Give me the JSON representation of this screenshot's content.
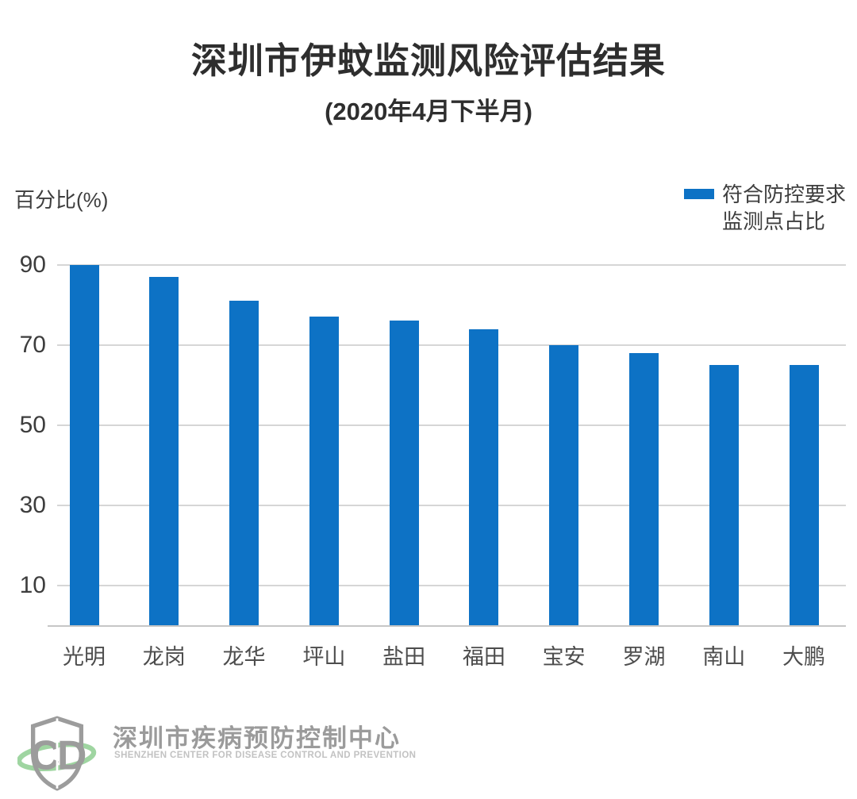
{
  "header": {
    "title": "深圳市伊蚊监测风险评估结果",
    "subtitle": "(2020年4月下半月)"
  },
  "legend": {
    "label": "符合防控要求\n监测点占比",
    "swatch_color": "#0d72c5"
  },
  "chart_data": {
    "type": "bar",
    "title": "深圳市伊蚊监测风险评估结果",
    "subtitle": "(2020年4月下半月)",
    "ylabel": "百分比(%)",
    "xlabel": "",
    "categories": [
      "光明",
      "龙岗",
      "龙华",
      "坪山",
      "盐田",
      "福田",
      "宝安",
      "罗湖",
      "南山",
      "大鹏"
    ],
    "values": [
      90,
      87,
      81,
      77,
      76,
      74,
      70,
      68,
      65,
      65
    ],
    "yticks": [
      90,
      70,
      50,
      30,
      10
    ],
    "ylim": [
      0,
      95
    ],
    "grid": true,
    "legend_entries": [
      "符合防控要求监测点占比"
    ],
    "legend_position": "top-right",
    "bar_color": "#0d72c5"
  },
  "colors": {
    "bar": "#0d72c5",
    "grid": "#d6d6d6",
    "axis": "#c6c6c6",
    "title_text": "#2e2e2e",
    "axis_text": "#3d3d3d",
    "footer_gray": "#9b9b9b",
    "footer_light_gray": "#c2c2c2",
    "logo_green": "#9fd5a1"
  },
  "footer": {
    "org_name": "深圳市疾病预防控制中心",
    "org_name_en": "SHENZHEN CENTER FOR DISEASE CONTROL AND PREVENTION",
    "logo": "cdc-shield-logo"
  }
}
